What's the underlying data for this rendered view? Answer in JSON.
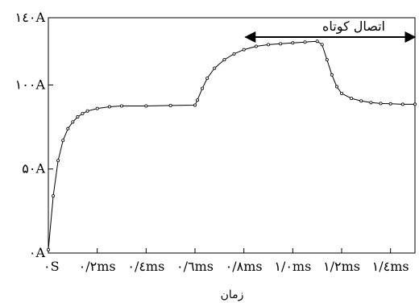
{
  "chart_data": {
    "type": "line",
    "xlabel": "زمان",
    "ylabel": "",
    "xlim": [
      0,
      1.5
    ],
    "ylim": [
      0,
      140
    ],
    "grid": false,
    "legend": "none",
    "x_tick_labels": [
      "۰S",
      "۰/۲ms",
      "۰/٤ms",
      "۰/٦ms",
      "۰/۸ms",
      "۱/۰ms",
      "۱/۲ms",
      "۱/٤ms"
    ],
    "x_ticks": [
      0,
      0.2,
      0.4,
      0.6,
      0.8,
      1.0,
      1.2,
      1.4
    ],
    "y_tick_labels": [
      "۰A",
      "۵۰A",
      "۱۰۰A",
      "۱٤۰A"
    ],
    "y_ticks": [
      0,
      50,
      100,
      140
    ],
    "annotation": {
      "text": "اتصال کوتاه",
      "x_start": 0.8,
      "x_end": 1.5
    },
    "series": [
      {
        "x": [
          0,
          0.02,
          0.04,
          0.06,
          0.08,
          0.1,
          0.12,
          0.14,
          0.16,
          0.2,
          0.25,
          0.3,
          0.4,
          0.5,
          0.6,
          0.61,
          0.63,
          0.65,
          0.68,
          0.72,
          0.76,
          0.8,
          0.85,
          0.9,
          0.95,
          1.0,
          1.05,
          1.1,
          1.12,
          1.14,
          1.16,
          1.18,
          1.2,
          1.24,
          1.28,
          1.32,
          1.36,
          1.4,
          1.45,
          1.5
        ],
        "y": [
          2,
          34,
          55,
          67,
          74,
          78,
          81,
          83,
          84.5,
          86,
          87,
          87.5,
          87.5,
          87.8,
          88,
          91,
          98,
          104,
          110,
          115,
          118.5,
          121,
          123,
          124,
          124.5,
          125,
          125.5,
          126,
          124,
          115,
          106,
          99,
          95,
          92,
          90.5,
          89.5,
          89,
          88.8,
          88.5,
          88.5
        ]
      }
    ]
  }
}
